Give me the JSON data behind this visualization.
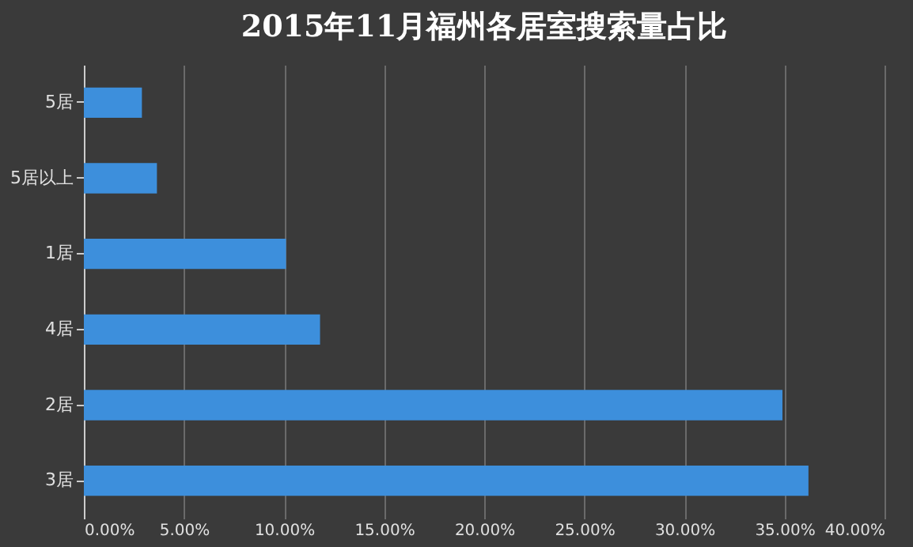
{
  "chart_data": {
    "type": "bar",
    "orientation": "horizontal",
    "title": "2015年11月福州各居室搜索量占比",
    "categories": [
      "5居",
      "5居以上",
      "1居",
      "4居",
      "2居",
      "3居"
    ],
    "values": [
      2.9,
      3.65,
      10.1,
      11.8,
      34.9,
      36.2
    ],
    "color": "#3d8fdc",
    "xlim": [
      0,
      40
    ],
    "xticks": [
      {
        "value": 0,
        "label": "0.00%"
      },
      {
        "value": 5,
        "label": "5.00%"
      },
      {
        "value": 10,
        "label": "10.00%"
      },
      {
        "value": 15,
        "label": "15.00%"
      },
      {
        "value": 20,
        "label": "20.00%"
      },
      {
        "value": 25,
        "label": "25.00%"
      },
      {
        "value": 30,
        "label": "30.00%"
      },
      {
        "value": 35,
        "label": "35.00%"
      },
      {
        "value": 40,
        "label": "40.00%"
      }
    ],
    "grid": "x"
  }
}
